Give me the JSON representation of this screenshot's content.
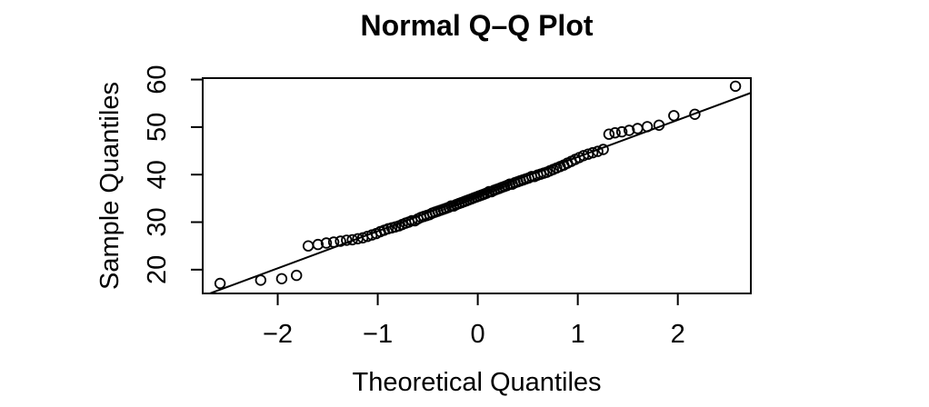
{
  "figure": {
    "background": "#ffffff",
    "foreground": "#000000"
  },
  "chart_data": {
    "type": "scatter",
    "title": "Normal Q–Q Plot",
    "xlabel": "Theoretical Quantiles",
    "ylabel": "Sample Quantiles",
    "xlim": [
      -2.75,
      2.73
    ],
    "ylim": [
      15.0,
      60.3
    ],
    "x_ticks": [
      -2,
      -1,
      0,
      1,
      2
    ],
    "x_tick_labels": [
      "−2",
      "−1",
      "0",
      "1",
      "2"
    ],
    "y_ticks": [
      20,
      30,
      40,
      50,
      60
    ],
    "y_tick_labels": [
      "20",
      "30",
      "40",
      "50",
      "60"
    ],
    "grid": false,
    "legend_position": "none",
    "marker": "open-circle",
    "point_color": "#000000",
    "line_color": "#000000",
    "reference_line": {
      "type": "qqline",
      "intercept": 35.9,
      "slope": 7.8
    },
    "points": {
      "x": [
        -2.576,
        -2.17,
        -1.96,
        -1.812,
        -1.695,
        -1.598,
        -1.514,
        -1.44,
        -1.372,
        -1.311,
        -1.254,
        -1.2,
        -1.15,
        -1.103,
        -1.058,
        -1.015,
        -0.974,
        -0.935,
        -0.896,
        -0.86,
        -0.824,
        -0.789,
        -0.755,
        -0.722,
        -0.69,
        -0.659,
        -0.628,
        -0.598,
        -0.568,
        -0.539,
        -0.51,
        -0.482,
        -0.454,
        -0.426,
        -0.399,
        -0.372,
        -0.345,
        -0.319,
        -0.292,
        -0.266,
        -0.24,
        -0.215,
        -0.189,
        -0.164,
        -0.138,
        -0.113,
        -0.088,
        -0.063,
        -0.038,
        -0.013,
        0.013,
        0.038,
        0.063,
        0.088,
        0.113,
        0.138,
        0.164,
        0.189,
        0.215,
        0.24,
        0.266,
        0.292,
        0.319,
        0.345,
        0.372,
        0.399,
        0.426,
        0.454,
        0.482,
        0.51,
        0.539,
        0.568,
        0.598,
        0.628,
        0.659,
        0.69,
        0.722,
        0.755,
        0.789,
        0.824,
        0.86,
        0.896,
        0.935,
        0.974,
        1.015,
        1.058,
        1.103,
        1.15,
        1.2,
        1.254,
        1.311,
        1.372,
        1.44,
        1.514,
        1.598,
        1.695,
        1.812,
        1.96,
        2.17,
        2.576
      ],
      "y": [
        17.1,
        17.8,
        18.1,
        18.8,
        25.0,
        25.3,
        25.6,
        25.8,
        26.0,
        26.2,
        26.3,
        26.5,
        26.7,
        27.0,
        27.3,
        27.6,
        28.0,
        28.3,
        28.6,
        28.8,
        29.0,
        29.2,
        29.5,
        29.8,
        30.0,
        30.3,
        30.3,
        30.7,
        31.0,
        31.2,
        31.4,
        31.6,
        31.9,
        32.1,
        32.3,
        32.5,
        32.7,
        32.9,
        33.1,
        33.4,
        33.4,
        33.7,
        33.9,
        34.1,
        34.3,
        34.5,
        34.7,
        34.9,
        35.1,
        35.3,
        35.5,
        35.7,
        35.9,
        36.1,
        36.4,
        36.4,
        36.7,
        36.9,
        37.1,
        37.3,
        37.5,
        37.7,
        38.0,
        38.0,
        38.3,
        38.5,
        38.7,
        38.9,
        39.1,
        39.3,
        39.6,
        39.6,
        39.9,
        40.1,
        40.3,
        40.5,
        40.8,
        41.1,
        41.4,
        41.7,
        42.0,
        42.4,
        42.8,
        43.2,
        43.6,
        44.0,
        44.3,
        44.6,
        44.9,
        45.3,
        48.5,
        48.8,
        49.0,
        49.3,
        49.7,
        50.1,
        50.4,
        52.4,
        52.7,
        58.6
      ]
    }
  }
}
